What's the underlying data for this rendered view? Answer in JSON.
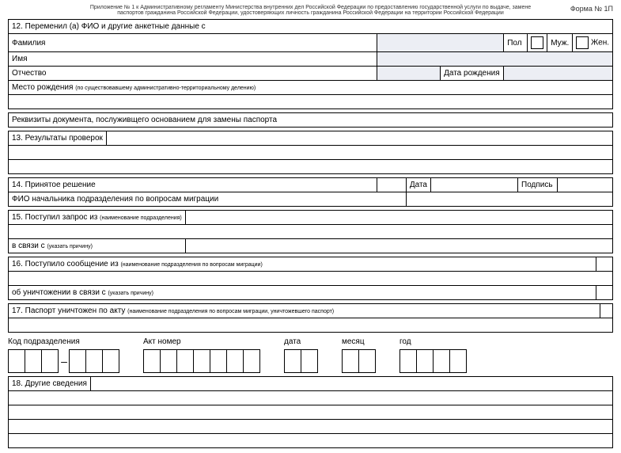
{
  "header": {
    "line1": "Приложение № 1 к Административному регламенту Министерства внутренних дел Российской Федерации по предоставлению государственной услуги по выдаче, замене",
    "line2": "паспортов гражданина Российской Федерации, удостоверяющих личность гражданина Российской Федерации на территории Российской Федерации",
    "form_number": "Форма № 1П"
  },
  "s12": {
    "title": "12. Переменил (а) ФИО и другие анкетные данные с",
    "surname": "Фамилия",
    "name": "Имя",
    "patronymic": "Отчество",
    "dob": "Дата рождения",
    "gender": "Пол",
    "male": "Муж.",
    "female": "Жен.",
    "birthplace": "Место рождения",
    "birthplace_note": "(по существовавшему административно-территориальному делению)"
  },
  "docbasis": {
    "title": "Реквизиты документа, послуживщего основанием для замены паспорта"
  },
  "s13": {
    "title": "13. Результаты проверок"
  },
  "s14": {
    "title": "14. Принятое решение",
    "date": "Дата",
    "sign": "Подпись",
    "chief": "ФИО начальника подразделения по вопросам миграции"
  },
  "s15": {
    "title": "15. Поступил запрос из",
    "note": "(наименование подразделения)",
    "reason": "в связи с",
    "reason_note": "(указать причину)"
  },
  "s16": {
    "title": "16. Поступило сообщение из",
    "note": "(наименование подразделения по вопросам миграции)",
    "destroy": "об уничтожении в связи с",
    "destroy_note": "(указать причину)"
  },
  "s17": {
    "title": "17. Паспорт уничтожен по акту",
    "note": "(наименование подразделения по вопросам миграции, уничтожевшего паспорт)",
    "code": "Код подразделения",
    "aktnum": "Акт номер",
    "aktdate": "дата",
    "month": "месяц",
    "year": "год",
    "boxes": {
      "code_a": 3,
      "code_b": 3,
      "aktnum": 7,
      "date": 2,
      "month": 2,
      "year": 4
    }
  },
  "s18": {
    "title": "18. Другие сведения"
  },
  "colors": {
    "shaded_bg": "#eceef4",
    "border": "#000000",
    "text": "#000000"
  }
}
